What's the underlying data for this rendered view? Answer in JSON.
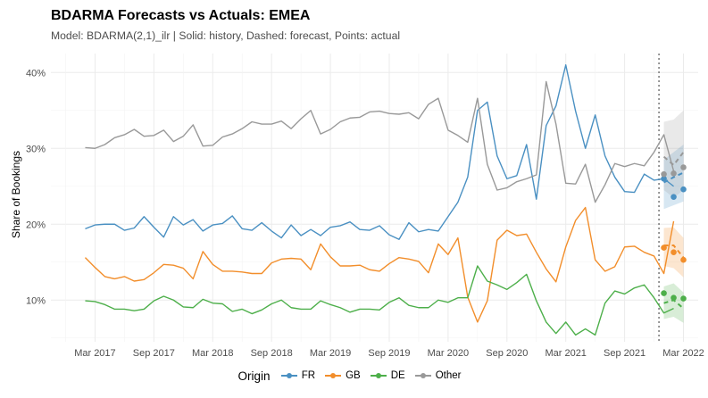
{
  "chart_data": {
    "type": "line",
    "title": "BDARMA Forecasts vs Actuals: EMEA",
    "subtitle": "Model: BDARMA(2,1)_ilr | Solid: history, Dashed: forecast, Points: actual",
    "xlabel": "",
    "ylabel": "Share of Bookings",
    "legend_title": "Origin",
    "legend_position": "bottom",
    "ylim": [
      4.5,
      42.5
    ],
    "y_ticks": [
      10,
      20,
      30,
      40
    ],
    "y_tick_labels": [
      "10%",
      "20%",
      "30%",
      "40%"
    ],
    "x_range_month_index": [
      -3.5,
      62.5
    ],
    "x_tick_positions": [
      1,
      7,
      13,
      19,
      25,
      31,
      37,
      43,
      49,
      55,
      61
    ],
    "x_tick_labels": [
      "Mar 2017",
      "Sep 2017",
      "Mar 2018",
      "Sep 2018",
      "Mar 2019",
      "Sep 2019",
      "Mar 2020",
      "Sep 2020",
      "Mar 2021",
      "Sep 2021",
      "Mar 2022"
    ],
    "forecast_start_index": 59,
    "history_x_start_month": "Jan 2017",
    "forecast_months": [
      "Jan 2022",
      "Feb 2022",
      "Mar 2022"
    ],
    "series": [
      {
        "name": "FR",
        "color": "#4a90c2",
        "history": [
          19.4,
          19.9,
          20.0,
          20.0,
          19.2,
          19.5,
          21.0,
          19.6,
          18.3,
          21.0,
          19.9,
          20.6,
          19.1,
          19.9,
          20.1,
          21.1,
          19.4,
          19.2,
          20.2,
          19.1,
          18.2,
          19.9,
          18.5,
          19.3,
          18.5,
          19.6,
          19.8,
          20.3,
          19.3,
          19.2,
          19.8,
          18.6,
          18.0,
          20.2,
          19.0,
          19.3,
          19.1,
          21.0,
          22.9,
          26.2,
          35.0,
          36.1,
          29.0,
          26.0,
          26.4,
          30.5,
          23.3,
          33.0,
          35.6,
          41.0,
          34.9,
          30.0,
          34.4,
          29.0,
          26.2,
          24.3,
          24.2,
          26.6,
          25.8,
          26.0,
          25.0
        ],
        "forecast": [
          25.5,
          26.2,
          26.8
        ],
        "forecast_lower": [
          22.0,
          22.5,
          23.0
        ],
        "forecast_upper": [
          28.5,
          29.5,
          30.5
        ],
        "actual": [
          26.0,
          23.6,
          24.6
        ]
      },
      {
        "name": "GB",
        "color": "#f28e2b",
        "history": [
          15.6,
          14.3,
          13.1,
          12.8,
          13.1,
          12.5,
          12.7,
          13.6,
          14.7,
          14.6,
          14.2,
          12.8,
          16.4,
          14.7,
          13.8,
          13.8,
          13.7,
          13.5,
          13.5,
          14.9,
          15.4,
          15.5,
          15.4,
          14.0,
          17.4,
          15.7,
          14.5,
          14.5,
          14.6,
          14.0,
          13.8,
          14.8,
          15.6,
          15.4,
          15.1,
          13.6,
          17.4,
          16.0,
          18.2,
          10.4,
          7.1,
          9.9,
          17.9,
          19.2,
          18.5,
          18.7,
          16.3,
          14.1,
          12.4,
          17.0,
          20.5,
          22.2,
          15.3,
          13.8,
          14.4,
          17.0,
          17.1,
          16.3,
          15.8,
          13.5,
          20.4
        ],
        "forecast": [
          17.2,
          17.2,
          15.6
        ],
        "forecast_lower": [
          14.5,
          14.2,
          13.0
        ],
        "forecast_upper": [
          19.5,
          19.6,
          18.2
        ],
        "actual": [
          16.9,
          16.3,
          15.3
        ]
      },
      {
        "name": "DE",
        "color": "#4daf4a",
        "history": [
          9.9,
          9.8,
          9.4,
          8.8,
          8.8,
          8.6,
          8.8,
          9.9,
          10.5,
          10.0,
          9.1,
          9.0,
          10.1,
          9.6,
          9.5,
          8.5,
          8.8,
          8.2,
          8.7,
          9.5,
          10.0,
          9.0,
          8.8,
          8.8,
          9.9,
          9.4,
          9.0,
          8.4,
          8.8,
          8.8,
          8.7,
          9.7,
          10.3,
          9.3,
          9.0,
          9.0,
          10.0,
          9.7,
          10.3,
          10.3,
          14.5,
          12.5,
          12.0,
          11.4,
          12.3,
          13.4,
          9.9,
          7.1,
          5.6,
          7.1,
          5.4,
          6.2,
          5.4,
          9.6,
          11.2,
          10.8,
          11.6,
          12.0,
          10.3,
          8.3,
          8.9
        ],
        "forecast": [
          9.6,
          10.0,
          8.9
        ],
        "forecast_lower": [
          7.5,
          7.8,
          7.0
        ],
        "forecast_upper": [
          11.8,
          12.2,
          11.0
        ],
        "actual": [
          10.9,
          10.3,
          10.2
        ]
      },
      {
        "name": "Other",
        "color": "#999999",
        "history": [
          30.1,
          30.0,
          30.5,
          31.4,
          31.8,
          32.5,
          31.6,
          31.7,
          32.4,
          30.9,
          31.6,
          33.1,
          30.3,
          30.4,
          31.5,
          31.9,
          32.6,
          33.5,
          33.2,
          33.2,
          33.6,
          32.6,
          33.9,
          35.0,
          31.9,
          32.5,
          33.5,
          34.0,
          34.1,
          34.8,
          34.9,
          34.6,
          34.5,
          34.7,
          33.9,
          35.8,
          36.6,
          32.4,
          31.7,
          30.8,
          36.6,
          27.9,
          24.5,
          24.8,
          25.6,
          26.0,
          26.5,
          38.8,
          33.2,
          25.4,
          25.3,
          27.9,
          22.9,
          25.2,
          28.0,
          27.6,
          28.0,
          27.7,
          29.5,
          31.8,
          27.0
        ],
        "forecast": [
          28.9,
          27.8,
          29.5
        ],
        "forecast_lower": [
          24.5,
          23.5,
          24.5
        ],
        "forecast_upper": [
          33.5,
          33.8,
          35.0
        ],
        "actual": [
          26.6,
          26.7,
          27.5
        ]
      }
    ]
  }
}
